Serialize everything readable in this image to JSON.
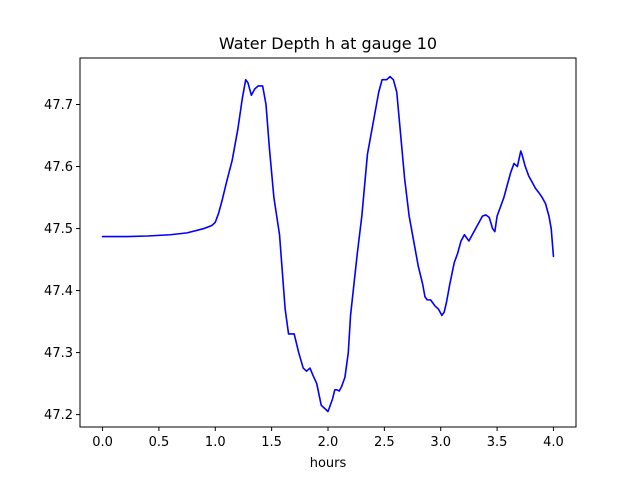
{
  "chart_data": {
    "type": "line",
    "title": "Water Depth h at gauge 10",
    "xlabel": "hours",
    "ylabel": "",
    "xlim": [
      -0.2,
      4.2
    ],
    "ylim": [
      47.18,
      47.775
    ],
    "xticks": [
      0.0,
      0.5,
      1.0,
      1.5,
      2.0,
      2.5,
      3.0,
      3.5,
      4.0
    ],
    "xtick_labels": [
      "0.0",
      "0.5",
      "1.0",
      "1.5",
      "2.0",
      "2.5",
      "3.0",
      "3.5",
      "4.0"
    ],
    "yticks": [
      47.2,
      47.3,
      47.4,
      47.5,
      47.6,
      47.7
    ],
    "ytick_labels": [
      "47.2",
      "47.3",
      "47.4",
      "47.5",
      "47.6",
      "47.7"
    ],
    "grid": false,
    "series": [
      {
        "color": "#0000ff",
        "x": [
          0.0,
          0.2,
          0.4,
          0.6,
          0.75,
          0.9,
          0.97,
          1.0,
          1.03,
          1.06,
          1.1,
          1.15,
          1.2,
          1.24,
          1.27,
          1.29,
          1.32,
          1.35,
          1.38,
          1.42,
          1.45,
          1.48,
          1.52,
          1.57,
          1.62,
          1.65,
          1.7,
          1.74,
          1.78,
          1.81,
          1.84,
          1.87,
          1.9,
          1.94,
          1.97,
          2.0,
          2.04,
          2.06,
          2.08,
          2.1,
          2.12,
          2.15,
          2.18,
          2.2,
          2.23,
          2.26,
          2.3,
          2.35,
          2.4,
          2.45,
          2.48,
          2.52,
          2.55,
          2.58,
          2.61,
          2.64,
          2.68,
          2.72,
          2.76,
          2.8,
          2.84,
          2.86,
          2.88,
          2.91,
          2.95,
          2.98,
          3.01,
          3.03,
          3.05,
          3.08,
          3.12,
          3.15,
          3.18,
          3.21,
          3.23,
          3.25,
          3.28,
          3.31,
          3.34,
          3.37,
          3.4,
          3.43,
          3.46,
          3.48,
          3.5,
          3.53,
          3.56,
          3.59,
          3.62,
          3.65,
          3.68,
          3.71,
          3.72,
          3.75,
          3.78,
          3.81,
          3.84,
          3.87,
          3.9,
          3.93,
          3.96,
          3.98,
          4.0
        ],
        "y": [
          47.487,
          47.487,
          47.488,
          47.49,
          47.493,
          47.5,
          47.505,
          47.51,
          47.525,
          47.545,
          47.575,
          47.61,
          47.66,
          47.71,
          47.74,
          47.735,
          47.715,
          47.725,
          47.73,
          47.73,
          47.7,
          47.63,
          47.55,
          47.49,
          47.37,
          47.33,
          47.33,
          47.3,
          47.275,
          47.27,
          47.275,
          47.262,
          47.25,
          47.215,
          47.21,
          47.205,
          47.225,
          47.24,
          47.24,
          47.238,
          47.245,
          47.26,
          47.3,
          47.36,
          47.41,
          47.46,
          47.52,
          47.62,
          47.67,
          47.72,
          47.74,
          47.74,
          47.745,
          47.74,
          47.72,
          47.66,
          47.58,
          47.52,
          47.48,
          47.44,
          47.41,
          47.39,
          47.385,
          47.385,
          47.375,
          47.37,
          47.36,
          47.365,
          47.38,
          47.41,
          47.445,
          47.46,
          47.48,
          47.49,
          47.485,
          47.48,
          47.49,
          47.5,
          47.51,
          47.52,
          47.522,
          47.518,
          47.5,
          47.495,
          47.52,
          47.535,
          47.55,
          47.57,
          47.59,
          47.605,
          47.6,
          47.625,
          47.62,
          47.6,
          47.585,
          47.575,
          47.565,
          47.558,
          47.55,
          47.54,
          47.52,
          47.5,
          47.455
        ]
      }
    ]
  }
}
